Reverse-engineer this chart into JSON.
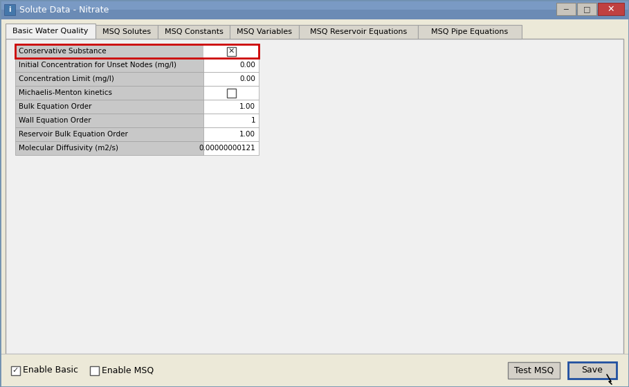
{
  "title": "Solute Data - Nitrate",
  "tabs": [
    "Basic Water Quality",
    "MSQ Solutes",
    "MSQ Constants",
    "MSQ Variables",
    "MSQ Reservoir Equations",
    "MSQ Pipe Equations"
  ],
  "active_tab": 0,
  "table_rows": [
    {
      "label": "Conservative Substance",
      "value": "checkbox_checked",
      "highlighted": true
    },
    {
      "label": "Initial Concentration for Unset Nodes (mg/l)",
      "value": "0.00",
      "highlighted": false
    },
    {
      "label": "Concentration Limit (mg/l)",
      "value": "0.00",
      "highlighted": false
    },
    {
      "label": "Michaelis-Menton kinetics",
      "value": "checkbox_unchecked",
      "highlighted": false
    },
    {
      "label": "Bulk Equation Order",
      "value": "1.00",
      "highlighted": false
    },
    {
      "label": "Wall Equation Order",
      "value": "1",
      "highlighted": false
    },
    {
      "label": "Reservoir Bulk Equation Order",
      "value": "1.00",
      "highlighted": false
    },
    {
      "label": "Molecular Diffusivity (m2/s)",
      "value": "0.00000000121",
      "highlighted": false
    }
  ],
  "bottom_checkboxes": [
    {
      "label": "Enable Basic",
      "checked": true
    },
    {
      "label": "Enable MSQ",
      "checked": false
    }
  ],
  "buttons": [
    "Test MSQ",
    "Save"
  ],
  "bg_color": "#ECE9D8",
  "titlebar_bg": "#6B8BB5",
  "titlebar_text": "#FFFFFF",
  "tab_active_bg": "#F0F0F0",
  "tab_inactive_bg": "#D8D5CC",
  "panel_bg": "#F0F0F0",
  "table_label_bg": "#C8C8C8",
  "table_value_bg": "#FFFFFF",
  "highlight_border": "#CC0000",
  "row_border": "#A0A0A0",
  "font_size": 7.5,
  "tab_font_size": 8.0
}
